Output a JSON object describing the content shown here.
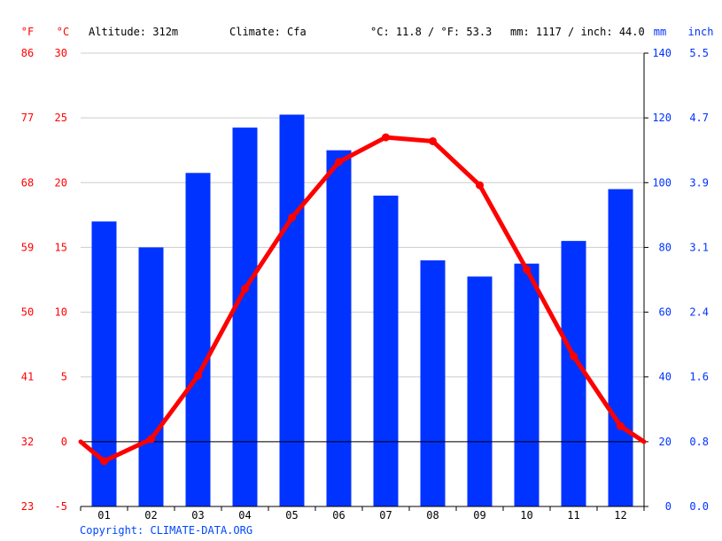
{
  "header": {
    "f_unit": "°F",
    "c_unit": "°C",
    "altitude": "Altitude: 312m",
    "climate": "Climate: Cfa",
    "temp_summary": "°C: 11.8 / °F: 53.3",
    "precip_summary": "mm: 1117 / inch: 44.0",
    "mm_unit": "mm",
    "inch_unit": "inch"
  },
  "colors": {
    "temperature": "#ff0000",
    "precipitation": "#0033ff",
    "grid": "#cccccc",
    "axis": "#000000"
  },
  "chart_data": {
    "type": "bar",
    "combo": "bar + line",
    "categories": [
      "01",
      "02",
      "03",
      "04",
      "05",
      "06",
      "07",
      "08",
      "09",
      "10",
      "11",
      "12"
    ],
    "series": [
      {
        "name": "precipitation",
        "type": "bar",
        "axis": "right",
        "unit": "mm",
        "values": [
          88,
          80,
          103,
          117,
          121,
          110,
          96,
          76,
          71,
          75,
          82,
          98
        ]
      },
      {
        "name": "temperature",
        "type": "line",
        "axis": "left",
        "unit": "°C",
        "values": [
          -1.5,
          0.2,
          5.1,
          11.8,
          17.3,
          21.6,
          23.5,
          23.2,
          19.8,
          13.3,
          6.6,
          1.2
        ],
        "start_value": 0.0,
        "end_value": 0.0
      }
    ],
    "y_left_c": {
      "lim": [
        -5,
        30
      ],
      "ticks": [
        "-5",
        "0",
        "5",
        "10",
        "15",
        "20",
        "25",
        "30"
      ]
    },
    "y_left_f": {
      "ticks": [
        "23",
        "32",
        "41",
        "50",
        "59",
        "68",
        "77",
        "86"
      ]
    },
    "y_right_mm": {
      "lim": [
        0,
        140
      ],
      "ticks": [
        "0",
        "20",
        "40",
        "60",
        "80",
        "100",
        "120",
        "140"
      ]
    },
    "y_right_inch": {
      "ticks": [
        "0.0",
        "0.8",
        "1.6",
        "2.4",
        "3.1",
        "3.9",
        "4.7",
        "5.5"
      ]
    },
    "grid": true
  },
  "footer": {
    "copyright": "Copyright: CLIMATE-DATA.ORG"
  }
}
